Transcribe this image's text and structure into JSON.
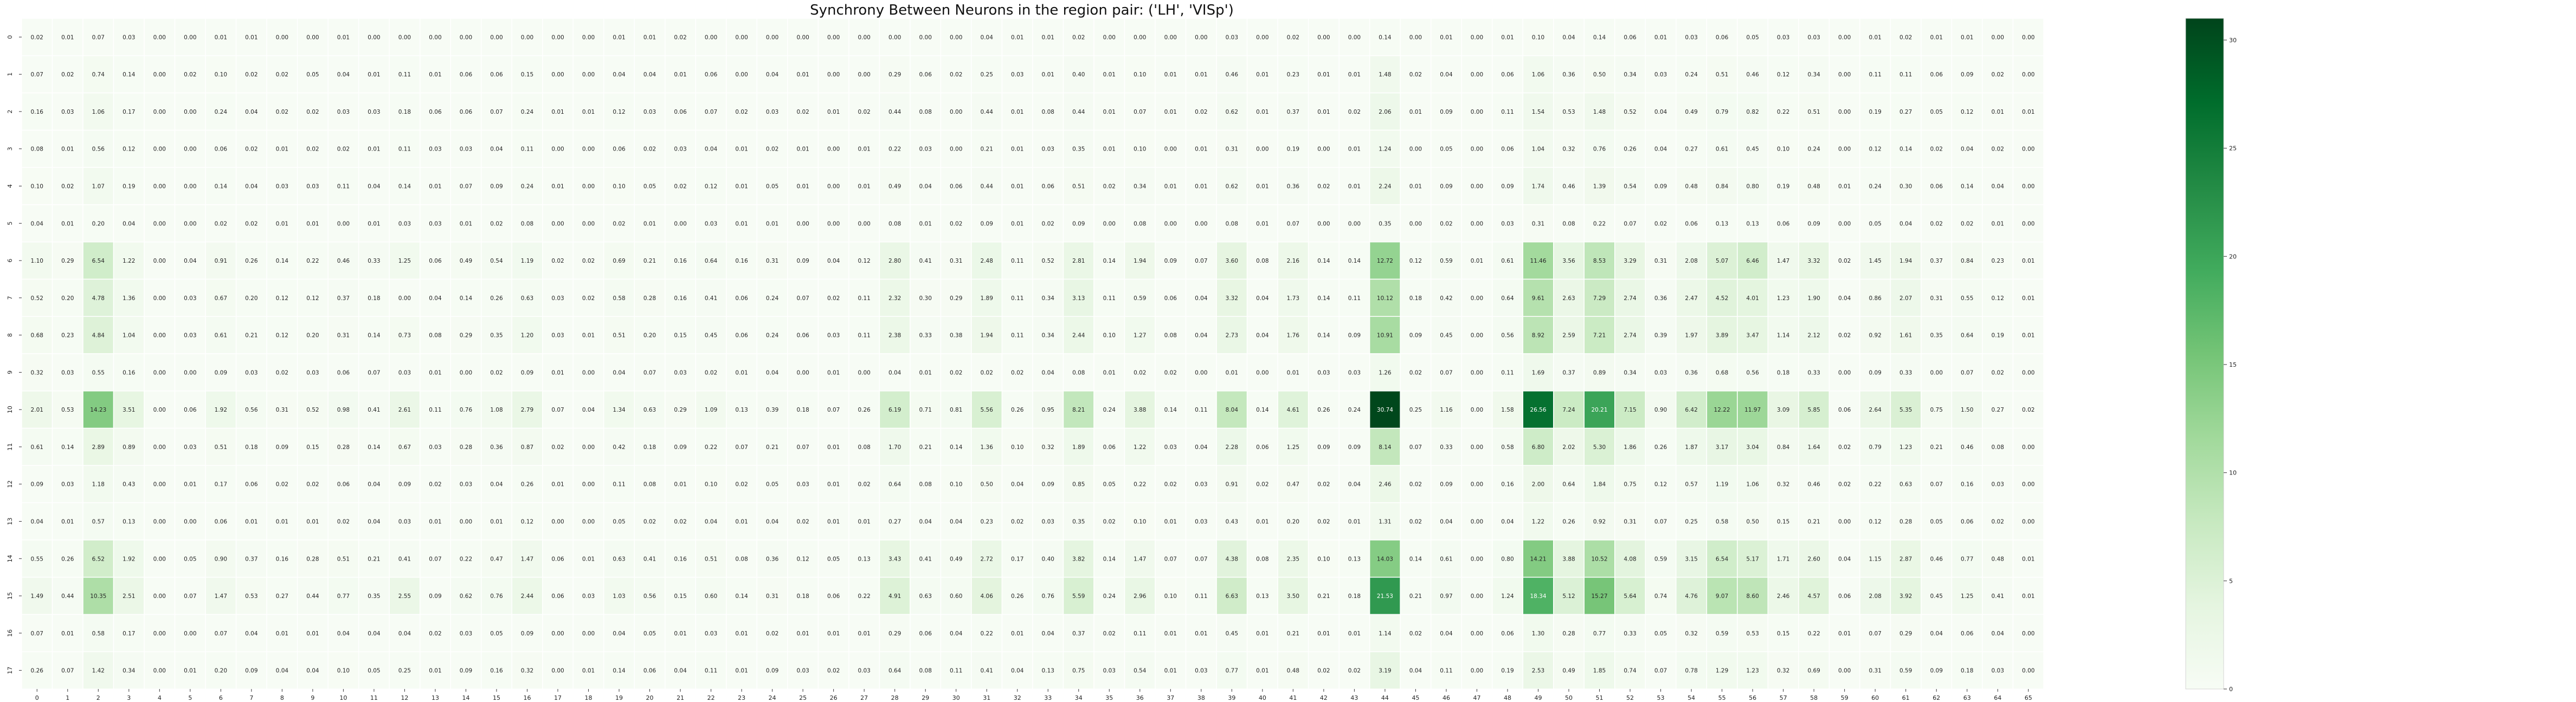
{
  "chart_data": {
    "type": "heatmap",
    "title": "Synchrony Between Neurons in the region pair: ('LH', 'VISp')",
    "xlabel": "",
    "ylabel": "",
    "x_ticks": [
      "0",
      "1",
      "2",
      "3",
      "4",
      "5",
      "6",
      "7",
      "8",
      "9",
      "10",
      "11",
      "12",
      "13",
      "14",
      "15",
      "16",
      "17",
      "18",
      "19",
      "20",
      "21",
      "22",
      "23",
      "24",
      "25",
      "26",
      "27",
      "28",
      "29",
      "30",
      "31",
      "32",
      "33",
      "34",
      "35",
      "36",
      "37",
      "38",
      "39",
      "40",
      "41",
      "42",
      "43",
      "44",
      "45",
      "46",
      "47",
      "48",
      "49",
      "50",
      "51",
      "52",
      "53",
      "54",
      "55",
      "56",
      "57",
      "58",
      "59",
      "60",
      "61",
      "62",
      "63",
      "64",
      "65"
    ],
    "y_ticks": [
      "0",
      "1",
      "2",
      "3",
      "4",
      "5",
      "6",
      "7",
      "8",
      "9",
      "10",
      "11",
      "12",
      "13",
      "14",
      "15",
      "16",
      "17"
    ],
    "colormap": "Greens",
    "color_low": "#f7fcf5",
    "color_high": "#00441b",
    "vmin": 0,
    "vmax": 31,
    "colorbar_ticks": [
      0,
      5,
      10,
      15,
      20,
      25,
      30
    ],
    "values": [
      [
        0.02,
        0.01,
        0.07,
        0.03,
        0.0,
        0.0,
        0.01,
        0.01,
        0.0,
        0.0,
        0.01,
        0.0,
        0.0,
        0.0,
        0.0,
        0.0,
        0.0,
        0.0,
        0.0,
        0.01,
        0.01,
        0.02,
        0.0,
        0.0,
        0.0,
        0.0,
        0.0,
        0.0,
        0.0,
        0.0,
        0.0,
        0.04,
        0.01,
        0.01,
        0.02,
        0.0,
        0.0,
        0.0,
        0.0,
        0.03,
        0.0,
        0.02,
        0.0,
        0.0,
        0.14,
        0.0,
        0.01,
        0.0,
        0.01,
        0.1,
        0.04,
        0.14,
        0.06,
        0.01,
        0.03,
        0.06,
        0.05,
        0.03,
        0.03,
        0.0,
        0.01,
        0.02,
        0.01,
        0.01,
        0.0,
        0.0
      ],
      [
        0.07,
        0.02,
        0.74,
        0.14,
        0.0,
        0.02,
        0.1,
        0.02,
        0.02,
        0.05,
        0.04,
        0.01,
        0.11,
        0.01,
        0.06,
        0.06,
        0.15,
        0.0,
        0.0,
        0.04,
        0.04,
        0.01,
        0.06,
        0.0,
        0.04,
        0.01,
        0.0,
        0.0,
        0.29,
        0.06,
        0.02,
        0.25,
        0.03,
        0.01,
        0.4,
        0.01,
        0.1,
        0.01,
        0.01,
        0.46,
        0.01,
        0.23,
        0.01,
        0.01,
        1.48,
        0.02,
        0.04,
        0.0,
        0.06,
        1.06,
        0.36,
        0.5,
        0.34,
        0.03,
        0.24,
        0.51,
        0.46,
        0.12,
        0.34,
        0.0,
        0.11,
        0.11,
        0.06,
        0.09,
        0.02,
        0.0
      ],
      [
        0.16,
        0.03,
        1.06,
        0.17,
        0.0,
        0.0,
        0.24,
        0.04,
        0.02,
        0.02,
        0.03,
        0.03,
        0.18,
        0.06,
        0.06,
        0.07,
        0.24,
        0.01,
        0.01,
        0.12,
        0.03,
        0.06,
        0.07,
        0.02,
        0.03,
        0.02,
        0.01,
        0.02,
        0.44,
        0.08,
        0.0,
        0.44,
        0.01,
        0.08,
        0.44,
        0.01,
        0.07,
        0.01,
        0.02,
        0.62,
        0.01,
        0.37,
        0.01,
        0.02,
        2.06,
        0.01,
        0.09,
        0.0,
        0.11,
        1.54,
        0.53,
        1.48,
        0.52,
        0.04,
        0.49,
        0.79,
        0.82,
        0.22,
        0.51,
        0.0,
        0.19,
        0.27,
        0.05,
        0.12,
        0.01,
        0.01
      ],
      [
        0.08,
        0.01,
        0.56,
        0.12,
        0.0,
        0.0,
        0.06,
        0.02,
        0.01,
        0.02,
        0.02,
        0.01,
        0.11,
        0.03,
        0.03,
        0.04,
        0.11,
        0.0,
        0.0,
        0.06,
        0.02,
        0.03,
        0.04,
        0.01,
        0.02,
        0.01,
        0.0,
        0.01,
        0.22,
        0.03,
        0.0,
        0.21,
        0.01,
        0.03,
        0.35,
        0.01,
        0.1,
        0.0,
        0.01,
        0.31,
        0.0,
        0.19,
        0.0,
        0.01,
        1.24,
        0.0,
        0.05,
        0.0,
        0.06,
        1.04,
        0.32,
        0.76,
        0.26,
        0.04,
        0.27,
        0.61,
        0.45,
        0.1,
        0.24,
        0.0,
        0.12,
        0.14,
        0.02,
        0.04,
        0.02,
        0.0
      ],
      [
        0.1,
        0.02,
        1.07,
        0.19,
        0.0,
        0.0,
        0.14,
        0.04,
        0.03,
        0.03,
        0.11,
        0.04,
        0.14,
        0.01,
        0.07,
        0.09,
        0.24,
        0.01,
        0.0,
        0.1,
        0.05,
        0.02,
        0.12,
        0.01,
        0.05,
        0.01,
        0.0,
        0.01,
        0.49,
        0.04,
        0.06,
        0.44,
        0.01,
        0.06,
        0.51,
        0.02,
        0.34,
        0.01,
        0.01,
        0.62,
        0.01,
        0.36,
        0.02,
        0.01,
        2.24,
        0.01,
        0.09,
        0.0,
        0.09,
        1.74,
        0.46,
        1.39,
        0.54,
        0.09,
        0.48,
        0.84,
        0.8,
        0.19,
        0.48,
        0.01,
        0.24,
        0.3,
        0.06,
        0.14,
        0.04,
        0.0
      ],
      [
        0.04,
        0.01,
        0.2,
        0.04,
        0.0,
        0.0,
        0.02,
        0.02,
        0.01,
        0.01,
        0.0,
        0.01,
        0.03,
        0.03,
        0.01,
        0.02,
        0.08,
        0.0,
        0.0,
        0.02,
        0.01,
        0.0,
        0.03,
        0.01,
        0.01,
        0.0,
        0.0,
        0.0,
        0.08,
        0.01,
        0.02,
        0.09,
        0.01,
        0.02,
        0.09,
        0.0,
        0.08,
        0.0,
        0.0,
        0.08,
        0.01,
        0.07,
        0.0,
        0.0,
        0.35,
        0.0,
        0.02,
        0.0,
        0.03,
        0.31,
        0.08,
        0.22,
        0.07,
        0.02,
        0.06,
        0.13,
        0.13,
        0.06,
        0.09,
        0.0,
        0.05,
        0.04,
        0.02,
        0.02,
        0.01,
        0.0
      ],
      [
        1.1,
        0.29,
        6.54,
        1.22,
        0.0,
        0.04,
        0.91,
        0.26,
        0.14,
        0.22,
        0.46,
        0.33,
        1.25,
        0.06,
        0.49,
        0.54,
        1.19,
        0.02,
        0.02,
        0.69,
        0.21,
        0.16,
        0.64,
        0.16,
        0.31,
        0.09,
        0.04,
        0.12,
        2.8,
        0.41,
        0.31,
        2.48,
        0.11,
        0.52,
        2.81,
        0.14,
        1.94,
        0.09,
        0.07,
        3.6,
        0.08,
        2.16,
        0.14,
        0.14,
        12.72,
        0.12,
        0.59,
        0.01,
        0.61,
        11.46,
        3.56,
        8.53,
        3.29,
        0.31,
        2.08,
        5.07,
        6.46,
        1.47,
        3.32,
        0.02,
        1.45,
        1.94,
        0.37,
        0.84,
        0.23,
        0.01
      ],
      [
        0.52,
        0.2,
        4.78,
        1.36,
        0.0,
        0.03,
        0.67,
        0.2,
        0.12,
        0.12,
        0.37,
        0.18,
        0.0,
        0.04,
        0.14,
        0.26,
        0.63,
        0.03,
        0.02,
        0.58,
        0.28,
        0.16,
        0.41,
        0.06,
        0.24,
        0.07,
        0.02,
        0.11,
        2.32,
        0.3,
        0.29,
        1.89,
        0.11,
        0.34,
        3.13,
        0.11,
        0.59,
        0.06,
        0.04,
        3.32,
        0.04,
        1.73,
        0.14,
        0.11,
        10.12,
        0.18,
        0.42,
        0.0,
        0.64,
        9.61,
        2.63,
        7.29,
        2.74,
        0.36,
        2.47,
        4.52,
        4.01,
        1.23,
        1.9,
        0.04,
        0.86,
        2.07,
        0.31,
        0.55,
        0.12,
        0.01
      ],
      [
        0.68,
        0.23,
        4.84,
        1.04,
        0.0,
        0.03,
        0.61,
        0.21,
        0.12,
        0.2,
        0.31,
        0.14,
        0.73,
        0.08,
        0.29,
        0.35,
        1.2,
        0.03,
        0.01,
        0.51,
        0.2,
        0.15,
        0.45,
        0.06,
        0.24,
        0.06,
        0.03,
        0.11,
        2.38,
        0.33,
        0.38,
        1.94,
        0.11,
        0.34,
        2.44,
        0.1,
        1.27,
        0.08,
        0.04,
        2.73,
        0.04,
        1.76,
        0.14,
        0.09,
        10.91,
        0.09,
        0.45,
        0.0,
        0.56,
        8.92,
        2.59,
        7.21,
        2.74,
        0.39,
        1.97,
        3.89,
        3.47,
        1.14,
        2.12,
        0.02,
        0.92,
        1.61,
        0.35,
        0.64,
        0.19,
        0.01
      ],
      [
        0.32,
        0.03,
        0.55,
        0.16,
        0.0,
        0.0,
        0.09,
        0.03,
        0.02,
        0.03,
        0.06,
        0.07,
        0.03,
        0.01,
        0.0,
        0.02,
        0.09,
        0.01,
        0.0,
        0.04,
        0.07,
        0.03,
        0.02,
        0.01,
        0.04,
        0.0,
        0.01,
        0.0,
        0.04,
        0.01,
        0.02,
        0.02,
        0.02,
        0.04,
        0.08,
        0.01,
        0.02,
        0.02,
        0.0,
        0.01,
        0.0,
        0.01,
        0.03,
        0.03,
        1.26,
        0.02,
        0.07,
        0.0,
        0.11,
        1.69,
        0.37,
        0.89,
        0.34,
        0.03,
        0.36,
        0.68,
        0.56,
        0.18,
        0.33,
        0.0,
        0.09,
        0.33,
        0.0,
        0.07,
        0.02,
        0.0
      ],
      [
        2.01,
        0.53,
        14.23,
        3.51,
        0.0,
        0.06,
        1.92,
        0.56,
        0.31,
        0.52,
        0.98,
        0.41,
        2.61,
        0.11,
        0.76,
        1.08,
        2.79,
        0.07,
        0.04,
        1.34,
        0.63,
        0.29,
        1.09,
        0.13,
        0.39,
        0.18,
        0.07,
        0.26,
        6.19,
        0.71,
        0.81,
        5.56,
        0.26,
        0.95,
        8.21,
        0.24,
        3.88,
        0.14,
        0.11,
        8.04,
        0.14,
        4.61,
        0.26,
        0.24,
        30.74,
        0.25,
        1.16,
        0.0,
        1.58,
        26.56,
        7.24,
        20.21,
        7.15,
        0.9,
        6.42,
        12.22,
        11.97,
        3.09,
        5.85,
        0.06,
        2.64,
        5.35,
        0.75,
        1.5,
        0.27,
        0.02
      ],
      [
        0.61,
        0.14,
        2.89,
        0.89,
        0.0,
        0.03,
        0.51,
        0.18,
        0.09,
        0.15,
        0.28,
        0.14,
        0.67,
        0.03,
        0.28,
        0.36,
        0.87,
        0.02,
        0.0,
        0.42,
        0.18,
        0.09,
        0.22,
        0.07,
        0.21,
        0.07,
        0.01,
        0.08,
        1.7,
        0.21,
        0.14,
        1.36,
        0.1,
        0.32,
        1.89,
        0.06,
        1.22,
        0.03,
        0.04,
        2.28,
        0.06,
        1.25,
        0.09,
        0.09,
        8.14,
        0.07,
        0.33,
        0.0,
        0.58,
        6.8,
        2.02,
        5.3,
        1.86,
        0.26,
        1.87,
        3.17,
        3.04,
        0.84,
        1.64,
        0.02,
        0.79,
        1.23,
        0.21,
        0.46,
        0.08,
        0.0
      ],
      [
        0.09,
        0.03,
        1.18,
        0.43,
        0.0,
        0.01,
        0.17,
        0.06,
        0.02,
        0.02,
        0.06,
        0.04,
        0.09,
        0.02,
        0.03,
        0.04,
        0.26,
        0.01,
        0.0,
        0.11,
        0.08,
        0.01,
        0.1,
        0.02,
        0.05,
        0.03,
        0.01,
        0.02,
        0.64,
        0.08,
        0.1,
        0.5,
        0.04,
        0.09,
        0.85,
        0.05,
        0.22,
        0.02,
        0.03,
        0.91,
        0.02,
        0.47,
        0.02,
        0.04,
        2.46,
        0.02,
        0.09,
        0.0,
        0.16,
        2.0,
        0.64,
        1.84,
        0.75,
        0.12,
        0.57,
        1.19,
        1.06,
        0.32,
        0.46,
        0.02,
        0.22,
        0.63,
        0.07,
        0.16,
        0.03,
        0.0
      ],
      [
        0.04,
        0.01,
        0.57,
        0.13,
        0.0,
        0.0,
        0.06,
        0.01,
        0.01,
        0.01,
        0.02,
        0.04,
        0.03,
        0.01,
        0.0,
        0.01,
        0.12,
        0.0,
        0.0,
        0.05,
        0.02,
        0.02,
        0.04,
        0.01,
        0.04,
        0.02,
        0.01,
        0.01,
        0.27,
        0.04,
        0.04,
        0.23,
        0.02,
        0.03,
        0.35,
        0.02,
        0.1,
        0.01,
        0.03,
        0.43,
        0.01,
        0.2,
        0.02,
        0.01,
        1.31,
        0.02,
        0.04,
        0.0,
        0.04,
        1.22,
        0.26,
        0.92,
        0.31,
        0.07,
        0.25,
        0.58,
        0.5,
        0.15,
        0.21,
        0.0,
        0.12,
        0.28,
        0.05,
        0.06,
        0.02,
        0.0
      ],
      [
        0.55,
        0.26,
        6.52,
        1.92,
        0.0,
        0.05,
        0.9,
        0.37,
        0.16,
        0.28,
        0.51,
        0.21,
        0.41,
        0.07,
        0.22,
        0.47,
        1.47,
        0.06,
        0.01,
        0.63,
        0.41,
        0.16,
        0.51,
        0.08,
        0.36,
        0.12,
        0.05,
        0.13,
        3.43,
        0.41,
        0.49,
        2.72,
        0.17,
        0.4,
        3.82,
        0.14,
        1.47,
        0.07,
        0.07,
        4.38,
        0.08,
        2.35,
        0.1,
        0.13,
        14.03,
        0.14,
        0.61,
        0.0,
        0.8,
        14.21,
        3.88,
        10.52,
        4.08,
        0.59,
        3.15,
        6.54,
        5.17,
        1.71,
        2.6,
        0.04,
        1.15,
        2.87,
        0.46,
        0.77,
        0.48,
        0.01
      ],
      [
        1.49,
        0.44,
        10.35,
        2.51,
        0.0,
        0.07,
        1.47,
        0.53,
        0.27,
        0.44,
        0.77,
        0.35,
        2.55,
        0.09,
        0.62,
        0.76,
        2.44,
        0.06,
        0.03,
        1.03,
        0.56,
        0.15,
        0.6,
        0.14,
        0.31,
        0.18,
        0.06,
        0.22,
        4.91,
        0.63,
        0.6,
        4.06,
        0.26,
        0.76,
        5.59,
        0.24,
        2.96,
        0.1,
        0.11,
        6.63,
        0.13,
        3.5,
        0.21,
        0.18,
        21.53,
        0.21,
        0.97,
        0.0,
        1.24,
        18.34,
        5.12,
        15.27,
        5.64,
        0.74,
        4.76,
        9.07,
        8.6,
        2.46,
        4.57,
        0.06,
        2.08,
        3.92,
        0.45,
        1.25,
        0.41,
        0.01
      ],
      [
        0.07,
        0.01,
        0.58,
        0.17,
        0.0,
        0.0,
        0.07,
        0.04,
        0.01,
        0.01,
        0.04,
        0.04,
        0.04,
        0.02,
        0.03,
        0.05,
        0.09,
        0.0,
        0.0,
        0.04,
        0.05,
        0.01,
        0.03,
        0.01,
        0.02,
        0.01,
        0.01,
        0.01,
        0.29,
        0.06,
        0.04,
        0.22,
        0.01,
        0.04,
        0.37,
        0.02,
        0.11,
        0.01,
        0.01,
        0.45,
        0.01,
        0.21,
        0.01,
        0.01,
        1.14,
        0.02,
        0.04,
        0.0,
        0.06,
        1.3,
        0.28,
        0.77,
        0.33,
        0.05,
        0.32,
        0.59,
        0.53,
        0.15,
        0.22,
        0.01,
        0.07,
        0.29,
        0.04,
        0.06,
        0.04,
        0.0
      ],
      [
        0.26,
        0.07,
        1.42,
        0.34,
        0.0,
        0.01,
        0.2,
        0.09,
        0.04,
        0.04,
        0.1,
        0.05,
        0.25,
        0.01,
        0.09,
        0.16,
        0.32,
        0.0,
        0.01,
        0.14,
        0.06,
        0.04,
        0.11,
        0.01,
        0.09,
        0.03,
        0.02,
        0.03,
        0.64,
        0.08,
        0.11,
        0.41,
        0.04,
        0.13,
        0.75,
        0.03,
        0.54,
        0.01,
        0.03,
        0.77,
        0.01,
        0.48,
        0.02,
        0.02,
        3.19,
        0.04,
        0.11,
        0.0,
        0.19,
        2.53,
        0.49,
        1.85,
        0.74,
        0.07,
        0.78,
        1.29,
        1.23,
        0.32,
        0.69,
        0.0,
        0.31,
        0.59,
        0.09,
        0.18,
        0.03,
        0.0
      ]
    ]
  }
}
